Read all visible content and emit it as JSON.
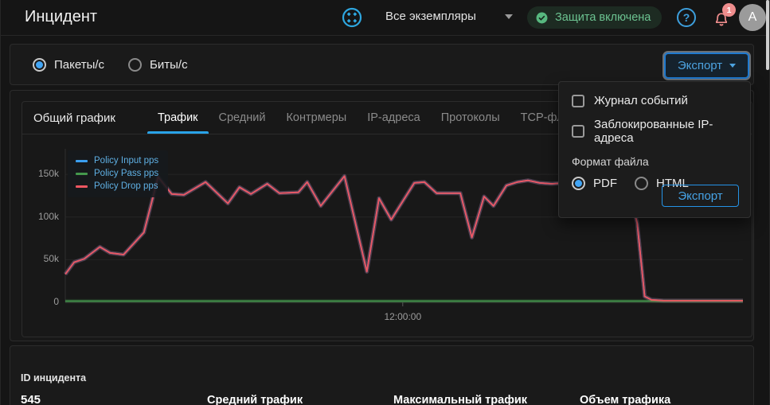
{
  "header": {
    "title": "Инцидент",
    "instance_selector": {
      "value": "Все экземпляры"
    },
    "protection_badge": {
      "label": "Защита включена",
      "color": "#6cc391",
      "bg": "#1d2b22"
    },
    "help_glyph": "?",
    "notifications_count": "1",
    "avatar_initial": "A"
  },
  "toolbar": {
    "unit_radios": [
      {
        "label": "Пакеты/с",
        "selected": true
      },
      {
        "label": "Биты/с",
        "selected": false
      }
    ],
    "export_button_label": "Экспорт"
  },
  "export_menu": {
    "checkboxes": [
      {
        "label": "Журнал событий",
        "checked": false
      },
      {
        "label": "Заблокированные IP-адреса",
        "checked": false
      }
    ],
    "format_label": "Формат файла",
    "formats": [
      {
        "label": "PDF",
        "selected": true
      },
      {
        "label": "HTML",
        "selected": false
      }
    ],
    "export_button_label": "Экспорт"
  },
  "chart_section": {
    "title": "Общий график",
    "tabs": [
      {
        "label": "Трафик",
        "active": true
      },
      {
        "label": "Средний",
        "active": false
      },
      {
        "label": "Контрмеры",
        "active": false
      },
      {
        "label": "IP-адреса",
        "active": false
      },
      {
        "label": "Протоколы",
        "active": false
      },
      {
        "label": "TCP-флаги",
        "active": false
      }
    ]
  },
  "chart_data": {
    "type": "line",
    "unit": "kpps",
    "ylim": [
      0,
      180
    ],
    "grid": true,
    "legend_position": "top-left",
    "yticks": [
      {
        "label": "0",
        "value": 0
      },
      {
        "label": "50k",
        "value": 50
      },
      {
        "label": "100k",
        "value": 100
      },
      {
        "label": "150k",
        "value": 150
      }
    ],
    "xticks": [
      {
        "label": "12:00:00",
        "pos": 0.498
      }
    ],
    "series": [
      {
        "name": "Policy Input pps",
        "color": "#3b9ff0",
        "points": [
          [
            0.0,
            33
          ],
          [
            0.013,
            47
          ],
          [
            0.028,
            51
          ],
          [
            0.051,
            65
          ],
          [
            0.066,
            58
          ],
          [
            0.086,
            56
          ],
          [
            0.116,
            82
          ],
          [
            0.137,
            147
          ],
          [
            0.157,
            127
          ],
          [
            0.175,
            126
          ],
          [
            0.207,
            141
          ],
          [
            0.24,
            116
          ],
          [
            0.257,
            135
          ],
          [
            0.274,
            127
          ],
          [
            0.298,
            139
          ],
          [
            0.316,
            128
          ],
          [
            0.344,
            129
          ],
          [
            0.357,
            141
          ],
          [
            0.377,
            113
          ],
          [
            0.412,
            148
          ],
          [
            0.445,
            36
          ],
          [
            0.463,
            122
          ],
          [
            0.481,
            97
          ],
          [
            0.515,
            140
          ],
          [
            0.53,
            141
          ],
          [
            0.548,
            128
          ],
          [
            0.583,
            128
          ],
          [
            0.6,
            76
          ],
          [
            0.618,
            124
          ],
          [
            0.632,
            113
          ],
          [
            0.651,
            137
          ],
          [
            0.667,
            141
          ],
          [
            0.683,
            143
          ],
          [
            0.7,
            140
          ],
          [
            0.718,
            139
          ],
          [
            0.736,
            140
          ],
          [
            0.753,
            141
          ],
          [
            0.771,
            139
          ],
          [
            0.789,
            140
          ],
          [
            0.806,
            141
          ],
          [
            0.824,
            138
          ],
          [
            0.835,
            120
          ],
          [
            0.844,
            93
          ],
          [
            0.855,
            7
          ],
          [
            0.865,
            3
          ],
          [
            0.883,
            2
          ],
          [
            0.918,
            2
          ],
          [
            0.953,
            2
          ],
          [
            0.988,
            2
          ],
          [
            1.0,
            2
          ]
        ]
      },
      {
        "name": "Policy Pass pps",
        "color": "#44984c",
        "points": [
          [
            0.0,
            1.5
          ],
          [
            0.25,
            1.5
          ],
          [
            0.5,
            1.5
          ],
          [
            0.75,
            1.5
          ],
          [
            1.0,
            1.5
          ]
        ]
      },
      {
        "name": "Policy Drop pps",
        "color": "#ee5661",
        "points": [
          [
            0.0,
            33
          ],
          [
            0.013,
            47
          ],
          [
            0.028,
            51
          ],
          [
            0.051,
            65
          ],
          [
            0.066,
            58
          ],
          [
            0.086,
            56
          ],
          [
            0.116,
            82
          ],
          [
            0.137,
            147
          ],
          [
            0.157,
            127
          ],
          [
            0.175,
            126
          ],
          [
            0.207,
            141
          ],
          [
            0.24,
            116
          ],
          [
            0.257,
            135
          ],
          [
            0.274,
            127
          ],
          [
            0.298,
            139
          ],
          [
            0.316,
            128
          ],
          [
            0.344,
            129
          ],
          [
            0.357,
            141
          ],
          [
            0.377,
            113
          ],
          [
            0.412,
            148
          ],
          [
            0.445,
            36
          ],
          [
            0.463,
            122
          ],
          [
            0.481,
            97
          ],
          [
            0.515,
            140
          ],
          [
            0.53,
            141
          ],
          [
            0.548,
            128
          ],
          [
            0.583,
            128
          ],
          [
            0.6,
            76
          ],
          [
            0.618,
            124
          ],
          [
            0.632,
            113
          ],
          [
            0.651,
            137
          ],
          [
            0.667,
            141
          ],
          [
            0.683,
            143
          ],
          [
            0.7,
            140
          ],
          [
            0.718,
            139
          ],
          [
            0.736,
            140
          ],
          [
            0.753,
            141
          ],
          [
            0.771,
            139
          ],
          [
            0.789,
            140
          ],
          [
            0.806,
            141
          ],
          [
            0.824,
            138
          ],
          [
            0.835,
            120
          ],
          [
            0.844,
            93
          ],
          [
            0.855,
            7
          ],
          [
            0.865,
            3
          ],
          [
            0.883,
            2
          ],
          [
            0.918,
            2
          ],
          [
            0.953,
            2
          ],
          [
            0.988,
            2
          ],
          [
            1.0,
            2
          ]
        ]
      }
    ]
  },
  "summary": {
    "incident_id_label": "ID инцидента",
    "incident_id_value": "545",
    "avg_traffic_label": "Средний трафик",
    "max_traffic_label": "Максимальный трафик",
    "volume_label": "Объем трафика"
  }
}
